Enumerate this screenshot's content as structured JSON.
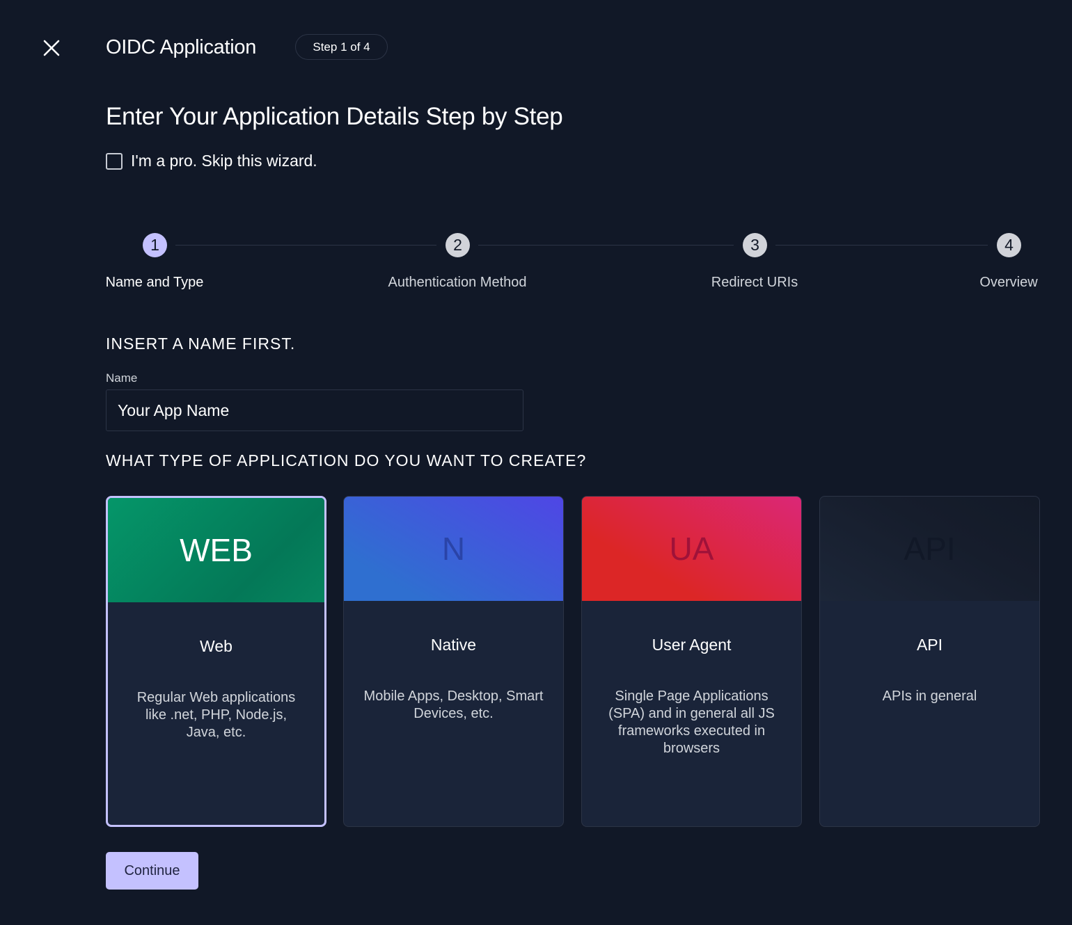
{
  "header": {
    "title": "OIDC Application",
    "step_badge": "Step 1 of 4",
    "close_icon": "close-icon"
  },
  "heading": "Enter Your Application Details Step by Step",
  "skip_wizard": {
    "label": "I'm a pro. Skip this wizard.",
    "checked": false
  },
  "stepper": [
    {
      "number": "1",
      "label": "Name and Type",
      "active": true
    },
    {
      "number": "2",
      "label": "Authentication Method",
      "active": false
    },
    {
      "number": "3",
      "label": "Redirect URIs",
      "active": false
    },
    {
      "number": "4",
      "label": "Overview",
      "active": false
    }
  ],
  "name_section": {
    "title": "INSERT A NAME FIRST.",
    "field_label": "Name",
    "value": "Your App Name"
  },
  "type_section": {
    "title": "WHAT TYPE OF APPLICATION DO YOU WANT TO CREATE?",
    "cards": [
      {
        "abbr": "WEB",
        "title": "Web",
        "description": "Regular Web applications like .net, PHP, Node.js, Java, etc.",
        "selected": true
      },
      {
        "abbr": "N",
        "title": "Native",
        "description": "Mobile Apps, Desktop, Smart Devices, etc.",
        "selected": false
      },
      {
        "abbr": "UA",
        "title": "User Agent",
        "description": "Single Page Applications (SPA) and in general all JS frameworks executed in browsers",
        "selected": false
      },
      {
        "abbr": "API",
        "title": "API",
        "description": "APIs in general",
        "selected": false
      }
    ]
  },
  "continue_label": "Continue",
  "colors": {
    "background": "#111827",
    "accent": "#c4c1ff",
    "card_body": "#1a2439",
    "web": "#059669",
    "native": "#4f46e5",
    "user_agent": "#dc2626",
    "api": "#1e293b"
  }
}
